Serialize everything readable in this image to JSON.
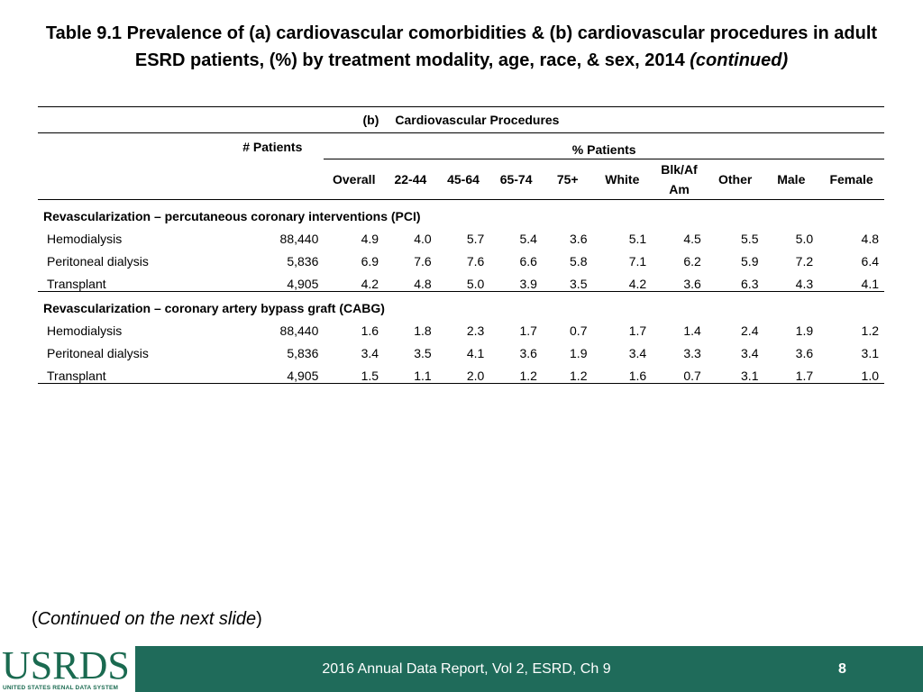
{
  "title": {
    "line1": "Table 9.1 Prevalence of (a) cardiovascular comorbidities & (b) cardiovascular procedures in adult",
    "line2": "ESRD patients, (%) by treatment modality, age, race, & sex, 2014",
    "continued": "(continued)"
  },
  "table": {
    "section_letter": "(b)",
    "section_title": "Cardiovascular Procedures",
    "pct_patients": "% Patients",
    "patients_header": "# Patients",
    "columns": [
      "Overall",
      "22-44",
      "45-64",
      "65-74",
      "75+",
      "White",
      "Blk/Af",
      "Other",
      "Male",
      "Female"
    ],
    "columns_blk_line2": "Am",
    "groups": [
      {
        "title": "Revascularization – percutaneous coronary interventions (PCI)",
        "rows": [
          {
            "label": "Hemodialysis",
            "patients": "88,440",
            "values": [
              "4.9",
              "4.0",
              "5.7",
              "5.4",
              "3.6",
              "5.1",
              "4.5",
              "5.5",
              "5.0",
              "4.8"
            ]
          },
          {
            "label": "Peritoneal dialysis",
            "patients": "5,836",
            "values": [
              "6.9",
              "7.6",
              "7.6",
              "6.6",
              "5.8",
              "7.1",
              "6.2",
              "5.9",
              "7.2",
              "6.4"
            ]
          },
          {
            "label": "Transplant",
            "patients": "4,905",
            "values": [
              "4.2",
              "4.8",
              "5.0",
              "3.9",
              "3.5",
              "4.2",
              "3.6",
              "6.3",
              "4.3",
              "4.1"
            ]
          }
        ]
      },
      {
        "title": "Revascularization – coronary artery bypass graft (CABG)",
        "rows": [
          {
            "label": "Hemodialysis",
            "patients": "88,440",
            "values": [
              "1.6",
              "1.8",
              "2.3",
              "1.7",
              "0.7",
              "1.7",
              "1.4",
              "2.4",
              "1.9",
              "1.2"
            ]
          },
          {
            "label": "Peritoneal dialysis",
            "patients": "5,836",
            "values": [
              "3.4",
              "3.5",
              "4.1",
              "3.6",
              "1.9",
              "3.4",
              "3.3",
              "3.4",
              "3.6",
              "3.1"
            ]
          },
          {
            "label": "Transplant",
            "patients": "4,905",
            "values": [
              "1.5",
              "1.1",
              "2.0",
              "1.2",
              "1.2",
              "1.6",
              "0.7",
              "3.1",
              "1.7",
              "1.0"
            ]
          }
        ]
      }
    ]
  },
  "continued_note": {
    "open": "(",
    "italic": "Continued on the next slide",
    "close": ")"
  },
  "footer": {
    "logo_text": "USRDS",
    "logo_subtext": "UNITED STATES RENAL DATA SYSTEM",
    "report": "2016 Annual Data Report, Vol 2, ESRD, Ch 9",
    "page": "8",
    "color": "#1f6b5a"
  }
}
